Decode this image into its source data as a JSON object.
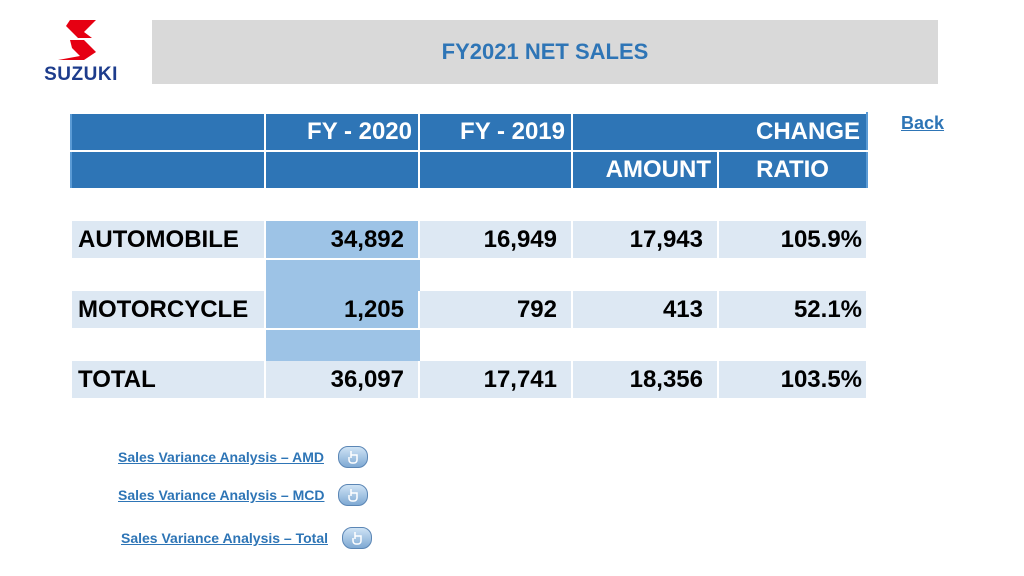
{
  "logo": {
    "brand_text": "SUZUKI",
    "accent_color": "#e60012",
    "text_color": "#1d3c8c"
  },
  "header": {
    "title": "FY2021 NET SALES"
  },
  "nav": {
    "back_label": "Back"
  },
  "table": {
    "headers": {
      "fy2020": "FY - 2020",
      "fy2019": "FY - 2019",
      "change": "CHANGE",
      "amount": "AMOUNT",
      "ratio": "RATIO"
    },
    "rows": [
      {
        "label": "AUTOMOBILE",
        "fy2020": "34,892",
        "fy2019": "16,949",
        "amount": "17,943",
        "ratio": "105.9%"
      },
      {
        "label": "MOTORCYCLE",
        "fy2020": "1,205",
        "fy2019": "792",
        "amount": "413",
        "ratio": "52.1%"
      },
      {
        "label": "TOTAL",
        "fy2020": "36,097",
        "fy2019": "17,741",
        "amount": "18,356",
        "ratio": "103.5%"
      }
    ]
  },
  "links": [
    {
      "label": "Sales Variance Analysis  – AMD",
      "icon": "hand-pointer-icon"
    },
    {
      "label": "Sales Variance Analysis  – MCD",
      "icon": "hand-pointer-icon"
    },
    {
      "label": "Sales Variance Analysis  – Total",
      "icon": "hand-pointer-icon"
    }
  ]
}
